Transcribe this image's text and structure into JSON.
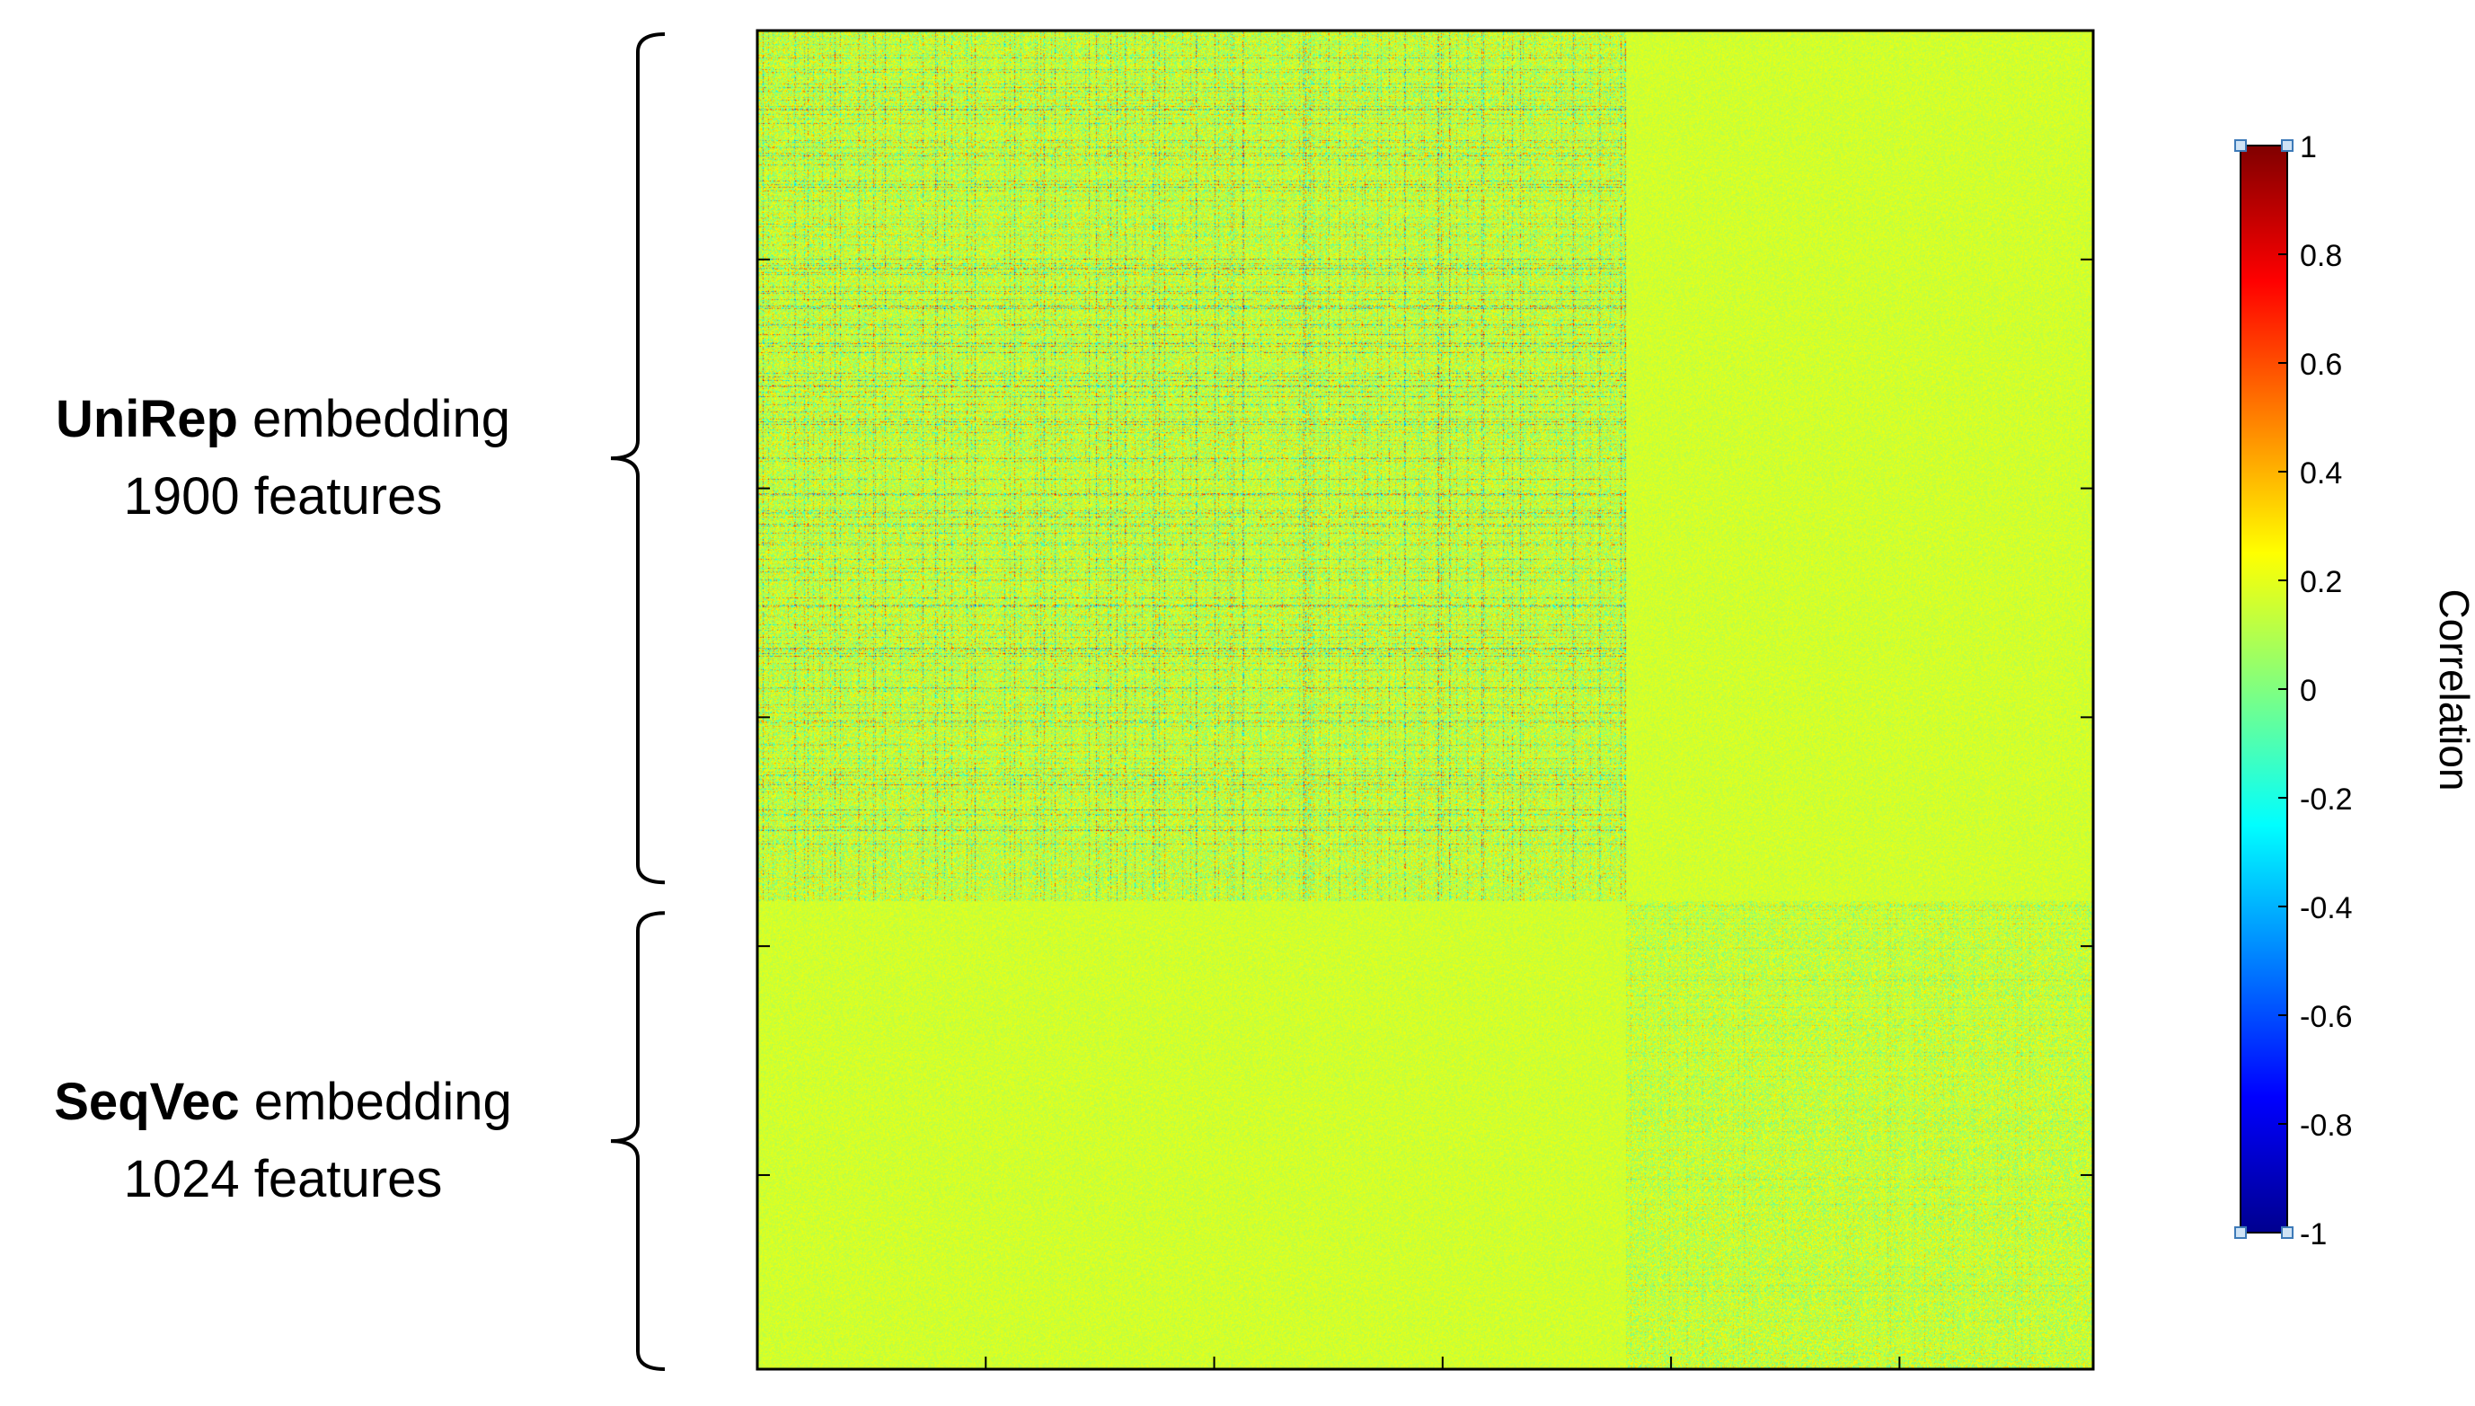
{
  "chart_data": {
    "type": "heatmap",
    "title": "",
    "xlabel": "",
    "ylabel": "",
    "x_range": [
      1,
      2924
    ],
    "y_range": [
      1,
      2924
    ],
    "x_ticks": [
      500,
      1000,
      1500,
      2000,
      2500
    ],
    "y_ticks": [
      500,
      1000,
      1500,
      2000,
      2500
    ],
    "blocks": [
      {
        "rows": [
          1,
          1900
        ],
        "cols": [
          1,
          1900
        ],
        "pattern": "strong mixed correlations (range about -0.6 to 0.6)"
      },
      {
        "rows": [
          1,
          1900
        ],
        "cols": [
          1901,
          2924
        ],
        "pattern": "near zero (about 0 to 0.1)"
      },
      {
        "rows": [
          1901,
          2924
        ],
        "cols": [
          1,
          1900
        ],
        "pattern": "near zero (about 0 to 0.1)"
      },
      {
        "rows": [
          1901,
          2924
        ],
        "cols": [
          1901,
          2924
        ],
        "pattern": "moderate mixed correlations (range about -0.4 to 0.4)"
      }
    ],
    "groups": [
      {
        "name_bold": "UniRep",
        "name_rest": " embedding",
        "count_label": "1900 features",
        "size": 1900
      },
      {
        "name_bold": "SeqVec",
        "name_rest": " embedding",
        "count_label": "1024 features",
        "size": 1024
      }
    ],
    "colorbar": {
      "label": "Correlation",
      "range": [
        -1,
        1
      ],
      "colormap": "jet",
      "ticks": [
        "1",
        "0.8",
        "0.6",
        "0.4",
        "0.2",
        "0",
        "-0.2",
        "-0.4",
        "-0.6",
        "-0.8",
        "-1"
      ]
    },
    "grid": false,
    "legend": "none"
  }
}
